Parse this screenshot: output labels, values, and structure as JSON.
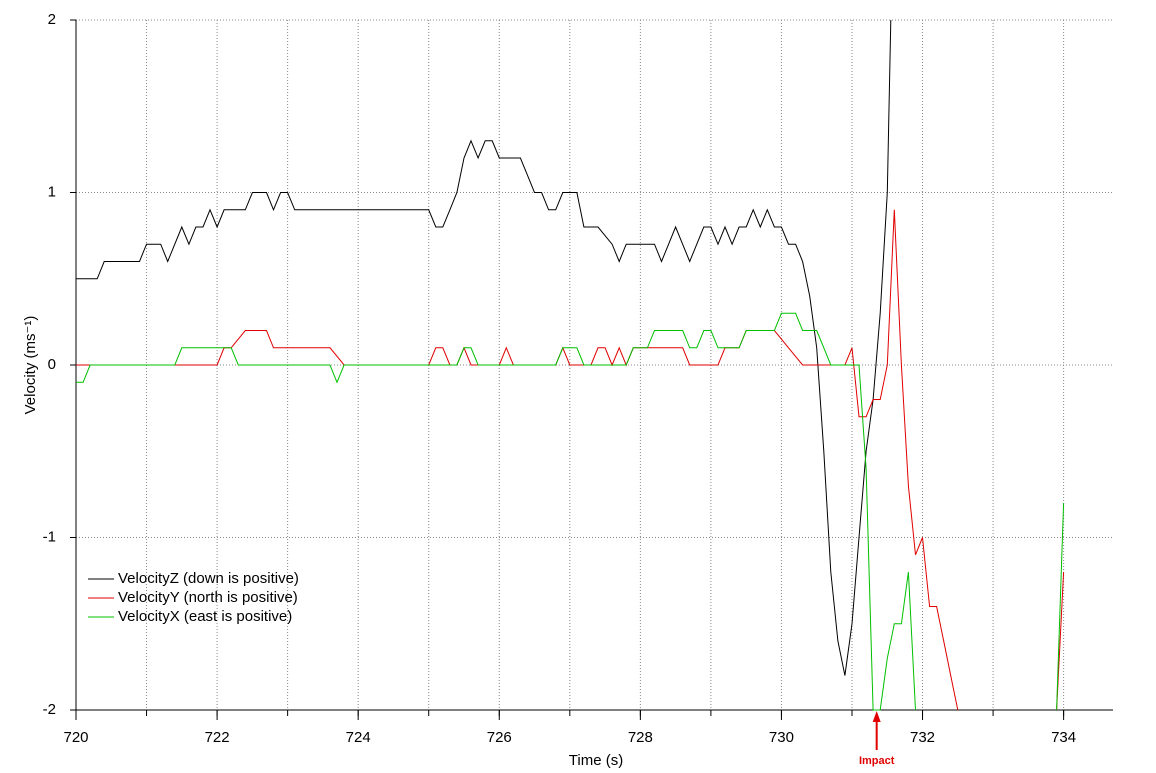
{
  "chart_data": {
    "type": "line",
    "xlabel": "Time (s)",
    "ylabel": "Velocity (ms⁻¹)",
    "xlim": [
      720,
      734.7
    ],
    "xticks": [
      720,
      722,
      724,
      726,
      728,
      730,
      732,
      734
    ],
    "xgrid": [
      721,
      722,
      723,
      724,
      725,
      726,
      727,
      728,
      729,
      730,
      731,
      732,
      733,
      734
    ],
    "ylim": [
      -2,
      2
    ],
    "yticks": [
      -2,
      -1,
      0,
      1,
      2
    ],
    "grid": true,
    "legend": "lower left",
    "annotation": {
      "text": "Impact",
      "x": 731.35,
      "color": "#e00000"
    },
    "series": [
      {
        "name": "VelocityZ (down is positive)",
        "color": "#000000",
        "x": [
          720,
          720.3,
          720.4,
          720.9,
          721.0,
          721.2,
          721.3,
          721.5,
          721.6,
          721.7,
          721.8,
          721.9,
          722.0,
          722.1,
          722.4,
          722.5,
          722.7,
          722.8,
          722.9,
          723.0,
          723.1,
          725.0,
          725.1,
          725.2,
          725.3,
          725.4,
          725.5,
          725.6,
          725.7,
          725.8,
          725.9,
          726.0,
          726.3,
          726.4,
          726.5,
          726.6,
          726.7,
          726.8,
          726.9,
          727.1,
          727.2,
          727.4,
          727.6,
          727.7,
          727.8,
          728.2,
          728.3,
          728.4,
          728.5,
          728.7,
          728.9,
          729.0,
          729.1,
          729.2,
          729.3,
          729.4,
          729.5,
          729.6,
          729.7,
          729.8,
          729.9,
          730.0,
          730.1,
          730.2,
          730.3,
          730.4,
          730.5,
          730.6,
          730.7,
          730.8,
          730.9,
          731.0,
          731.1,
          731.2,
          731.3,
          731.4,
          731.5,
          731.55
        ],
        "values": [
          0.5,
          0.5,
          0.6,
          0.6,
          0.7,
          0.7,
          0.6,
          0.8,
          0.7,
          0.8,
          0.8,
          0.9,
          0.8,
          0.9,
          0.9,
          1.0,
          1.0,
          0.9,
          1.0,
          1.0,
          0.9,
          0.9,
          0.8,
          0.8,
          0.9,
          1.0,
          1.2,
          1.3,
          1.2,
          1.3,
          1.3,
          1.2,
          1.2,
          1.1,
          1.0,
          1.0,
          0.9,
          0.9,
          1.0,
          1.0,
          0.8,
          0.8,
          0.7,
          0.6,
          0.7,
          0.7,
          0.6,
          0.7,
          0.8,
          0.6,
          0.8,
          0.8,
          0.7,
          0.8,
          0.7,
          0.8,
          0.8,
          0.9,
          0.8,
          0.9,
          0.8,
          0.8,
          0.7,
          0.7,
          0.6,
          0.4,
          0.1,
          -0.5,
          -1.2,
          -1.6,
          -1.8,
          -1.5,
          -1.0,
          -0.5,
          -0.2,
          0.3,
          1.0,
          2.0
        ]
      },
      {
        "name": "VelocityY (north is positive)",
        "color": "#e00000",
        "x": [
          720,
          722.0,
          722.1,
          722.2,
          722.4,
          722.7,
          722.8,
          723.6,
          723.8,
          725.0,
          725.1,
          725.2,
          725.3,
          725.4,
          725.5,
          725.6,
          726.0,
          726.1,
          726.2,
          726.8,
          726.9,
          727.0,
          727.3,
          727.4,
          727.5,
          727.6,
          727.7,
          727.8,
          727.9,
          728.6,
          728.7,
          729.1,
          729.2,
          729.4,
          729.5,
          729.9,
          730.1,
          730.3,
          730.9,
          731.0,
          731.1,
          731.2,
          731.3,
          731.4,
          731.5,
          731.6,
          731.7,
          731.8,
          731.9,
          732.0,
          732.1,
          732.2,
          732.3,
          732.4,
          732.5,
          733.2,
          733.9,
          734.0
        ],
        "values": [
          0,
          0,
          0.1,
          0.1,
          0.2,
          0.2,
          0.1,
          0.1,
          0,
          0,
          0.1,
          0.1,
          0,
          0,
          0.1,
          0,
          0,
          0.1,
          0,
          0,
          0.1,
          0,
          0,
          0.1,
          0.1,
          0,
          0.1,
          0,
          0.1,
          0.1,
          0,
          0,
          0.1,
          0.1,
          0.2,
          0.2,
          0.1,
          0,
          0,
          0.1,
          -0.3,
          -0.3,
          -0.2,
          -0.2,
          0,
          0.9,
          0,
          -0.7,
          -1.1,
          -1.0,
          -1.4,
          -1.4,
          -1.6,
          -1.8,
          -2.0,
          null,
          -2.0,
          -1.2
        ]
      },
      {
        "name": "VelocityX (east is positive)",
        "color": "#00c000",
        "x": [
          720,
          720.1,
          720.2,
          721.4,
          721.5,
          722.2,
          722.3,
          723.6,
          723.7,
          723.8,
          725.4,
          725.5,
          725.6,
          725.7,
          726.8,
          726.9,
          727.1,
          727.2,
          727.8,
          727.9,
          728.1,
          728.2,
          728.6,
          728.7,
          728.8,
          728.9,
          729.0,
          729.1,
          729.4,
          729.5,
          729.9,
          730.0,
          730.2,
          730.3,
          730.5,
          730.6,
          730.7,
          731.1,
          731.2,
          731.3,
          731.4,
          731.5,
          731.6,
          731.7,
          731.8,
          731.9,
          733.0,
          733.9,
          734.0
        ],
        "values": [
          -0.1,
          -0.1,
          0,
          0,
          0.1,
          0.1,
          0,
          0,
          -0.1,
          0,
          0,
          0.1,
          0.1,
          0,
          0,
          0.1,
          0.1,
          0,
          0,
          0.1,
          0.1,
          0.2,
          0.2,
          0.1,
          0.1,
          0.2,
          0.2,
          0.1,
          0.1,
          0.2,
          0.2,
          0.3,
          0.3,
          0.2,
          0.2,
          0.1,
          0,
          0,
          -0.6,
          -2.0,
          -2.0,
          -1.7,
          -1.5,
          -1.5,
          -1.2,
          -2.0,
          null,
          -2.0,
          -0.8
        ]
      }
    ]
  }
}
